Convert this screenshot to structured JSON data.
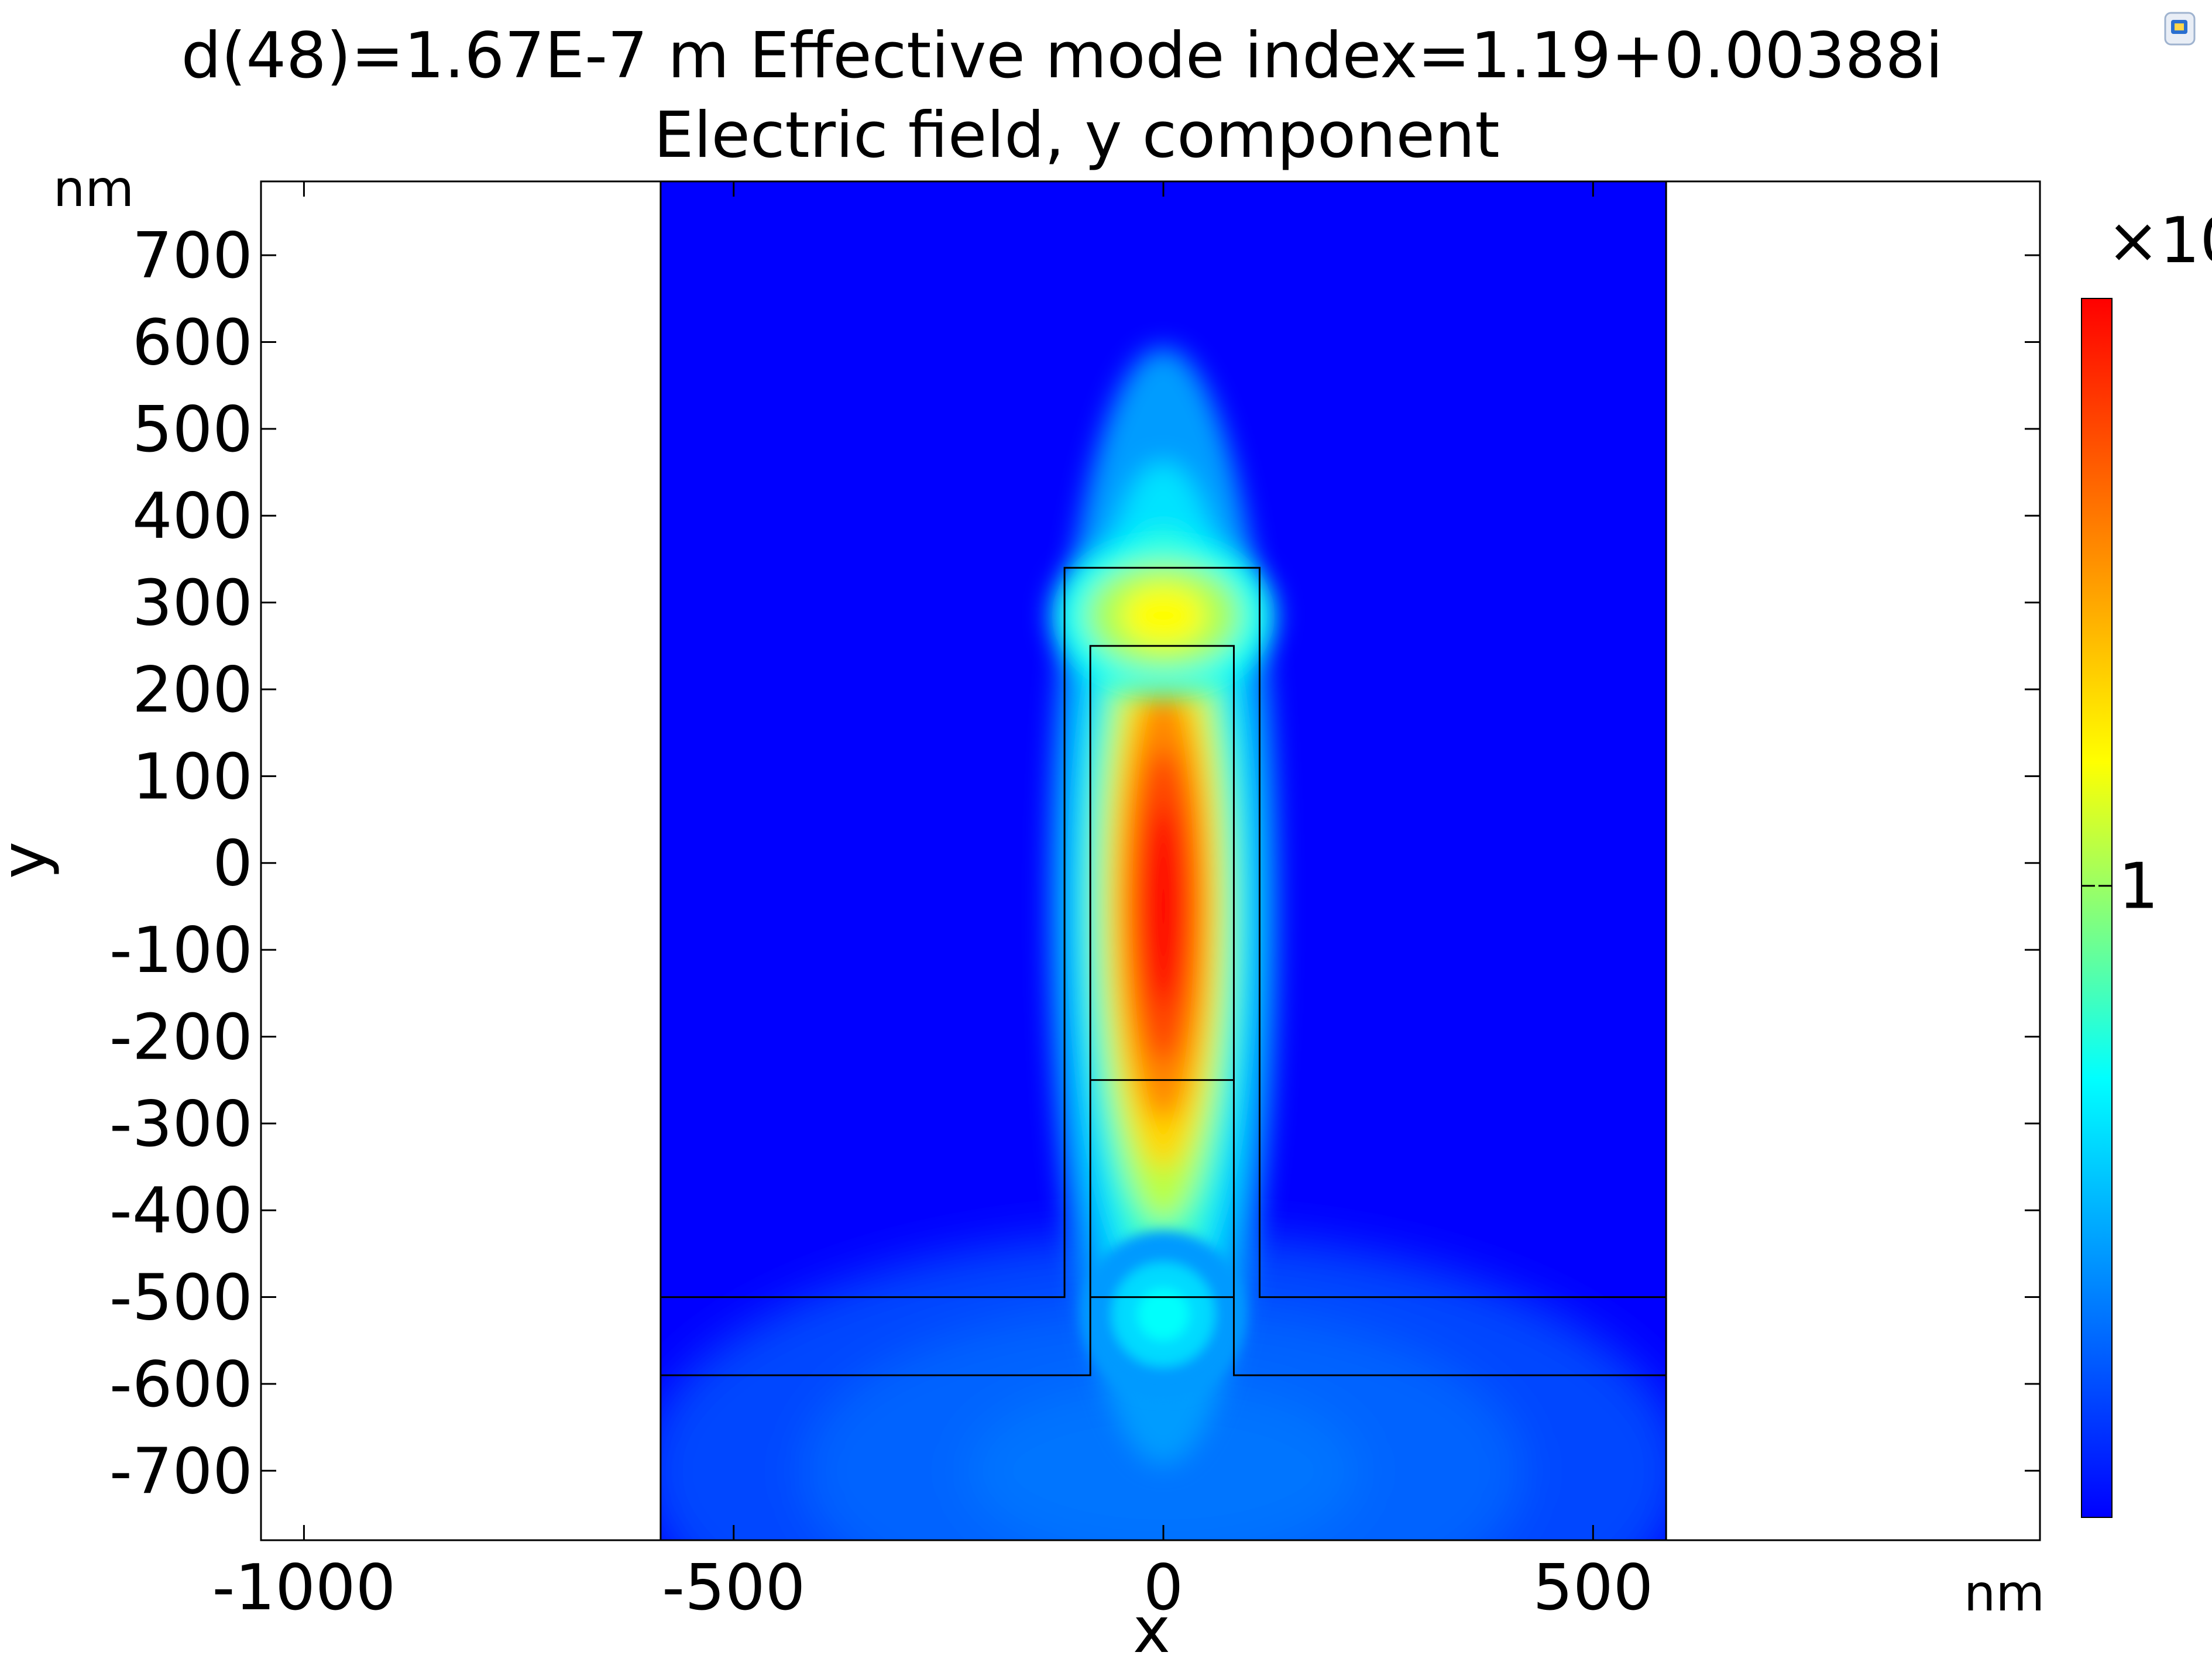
{
  "chart_data": {
    "type": "heatmap",
    "title_lines": [
      "d(48)=1.67E-7 m Effective mode index=1.19+0.00388i",
      "Electric field, y component"
    ],
    "xlabel": "x",
    "ylabel": "y",
    "x_unit": "nm",
    "y_unit": "nm",
    "xlim": [
      -1050,
      1020
    ],
    "ylim": [
      -780,
      785
    ],
    "x_ticks": [
      -1000,
      -500,
      0,
      500
    ],
    "x_tick_labels": [
      "-1000",
      "-500",
      "0",
      "500"
    ],
    "y_ticks": [
      700,
      600,
      500,
      400,
      300,
      200,
      100,
      0,
      -100,
      -200,
      -300,
      -400,
      -500,
      -600,
      -700
    ],
    "y_tick_labels": [
      "700",
      "600",
      "500",
      "400",
      "300",
      "200",
      "100",
      "0",
      "-100",
      "-200",
      "-300",
      "-400",
      "-500",
      "-600",
      "-700"
    ],
    "colorbar": {
      "colormap": "rainbow",
      "colors": [
        "#0000ff",
        "#00ffff",
        "#ffff00",
        "#ff0000"
      ],
      "scale_label": "×10",
      "tick_values": [
        1
      ],
      "tick_labels": [
        "1"
      ],
      "range": [
        0.0,
        1.93
      ]
    },
    "domain": {
      "x_range": [
        -585,
        585
      ],
      "y_range": [
        -780,
        785
      ]
    },
    "geometry_boundaries": [
      {
        "name": "outer-rib",
        "points": [
          [
            -585,
            -500
          ],
          [
            -115,
            -500
          ],
          [
            -115,
            340
          ],
          [
            112,
            340
          ],
          [
            112,
            -500
          ],
          [
            585,
            -500
          ]
        ]
      },
      {
        "name": "slab-bottom",
        "points": [
          [
            -585,
            -590
          ],
          [
            -85,
            -590
          ],
          [
            -85,
            250
          ],
          [
            82,
            250
          ],
          [
            82,
            -590
          ],
          [
            585,
            -590
          ]
        ]
      },
      {
        "name": "core-lower-interface",
        "points": [
          [
            -85,
            -250
          ],
          [
            82,
            -250
          ]
        ]
      },
      {
        "name": "core-base-interface",
        "points": [
          [
            -85,
            -500
          ],
          [
            82,
            -500
          ]
        ]
      }
    ],
    "field_features": [
      {
        "name": "core-hotspot",
        "center": [
          0,
          -50
        ],
        "semi_axes": [
          68,
          330
        ],
        "peak": 1.93
      },
      {
        "name": "cap-spot",
        "center": [
          0,
          285
        ],
        "semi_axes": [
          100,
          70
        ],
        "peak": 1.2
      },
      {
        "name": "pedestal-glow",
        "center": [
          0,
          -520
        ],
        "semi_axes": [
          60,
          60
        ],
        "peak": 0.7
      },
      {
        "name": "substrate-glow",
        "center": [
          0,
          -700
        ],
        "semi_axes": [
          380,
          170
        ],
        "peak": 0.32
      }
    ]
  },
  "app_icon": "comsol-logo-icon"
}
